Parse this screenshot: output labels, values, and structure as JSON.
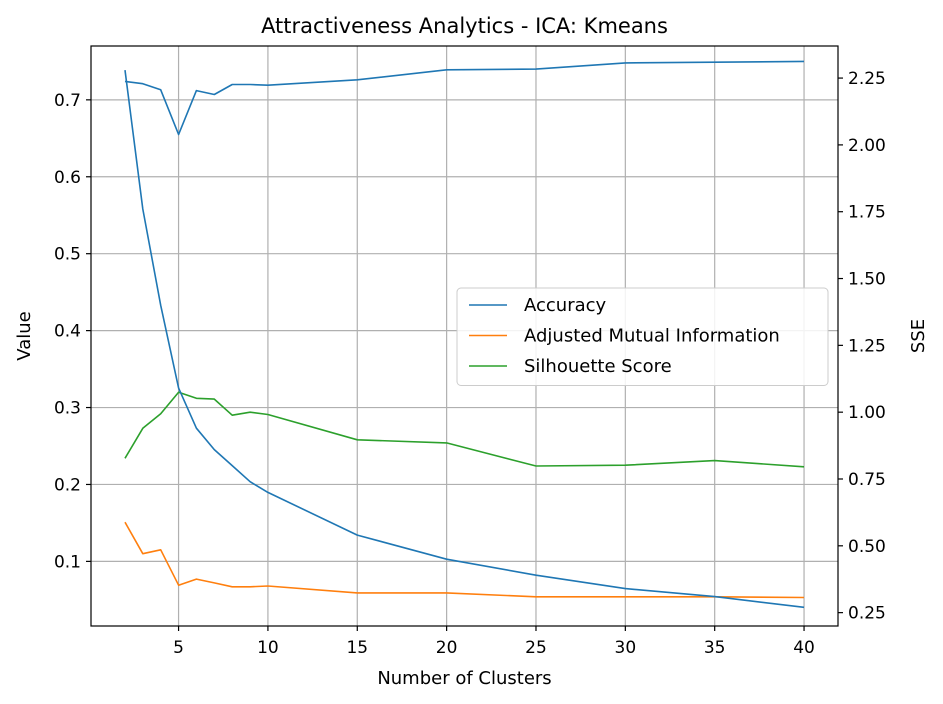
{
  "chart_data": {
    "type": "line",
    "title": "Attractiveness Analytics - ICA: Kmeans",
    "xlabel": "Number of Clusters",
    "ylabel_left": "Value",
    "ylabel_right": "SSE",
    "x": [
      2,
      3,
      4,
      5,
      6,
      7,
      8,
      9,
      10,
      15,
      20,
      25,
      30,
      35,
      40
    ],
    "xlim": [
      0.1,
      41.9
    ],
    "xticks": [
      5,
      10,
      15,
      20,
      25,
      30,
      35,
      40
    ],
    "ylim_left": [
      0.016,
      0.77
    ],
    "yticks_left": [
      0.1,
      0.2,
      0.3,
      0.4,
      0.5,
      0.6,
      0.7
    ],
    "ylim_right": [
      0.2,
      2.37
    ],
    "yticks_right": [
      0.25,
      0.5,
      0.75,
      1.0,
      1.25,
      1.5,
      1.75,
      2.0,
      2.25
    ],
    "yticklabels_right": [
      "0.25",
      "0.50",
      "0.75",
      "1.00",
      "1.25",
      "1.50",
      "1.75",
      "2.00",
      "2.25"
    ],
    "grid": true,
    "legend_position": "center-right",
    "series": [
      {
        "name": "Accuracy",
        "axis": "left",
        "color": "#1f77b4",
        "values": [
          0.724,
          0.721,
          0.713,
          0.655,
          0.712,
          0.707,
          0.72,
          0.72,
          0.719,
          0.726,
          0.739,
          0.74,
          0.748,
          0.749,
          0.75
        ]
      },
      {
        "name": "Adjusted Mutual Information",
        "axis": "left",
        "color": "#ff7f0e",
        "values": [
          0.151,
          0.11,
          0.115,
          0.069,
          0.077,
          0.072,
          0.067,
          0.067,
          0.068,
          0.059,
          0.059,
          0.054,
          0.054,
          0.054,
          0.053
        ]
      },
      {
        "name": "Silhouette Score",
        "axis": "left",
        "color": "#2ca02c",
        "values": [
          0.234,
          0.273,
          0.292,
          0.32,
          0.312,
          0.311,
          0.29,
          0.294,
          0.291,
          0.258,
          0.254,
          0.224,
          0.225,
          0.231,
          0.223
        ]
      },
      {
        "axis": "right",
        "color": "#1f77b4",
        "values": [
          2.28,
          1.76,
          1.4,
          1.09,
          0.94,
          0.86,
          0.8,
          0.74,
          0.7,
          0.54,
          0.45,
          0.39,
          0.34,
          0.31,
          0.27
        ]
      }
    ]
  }
}
